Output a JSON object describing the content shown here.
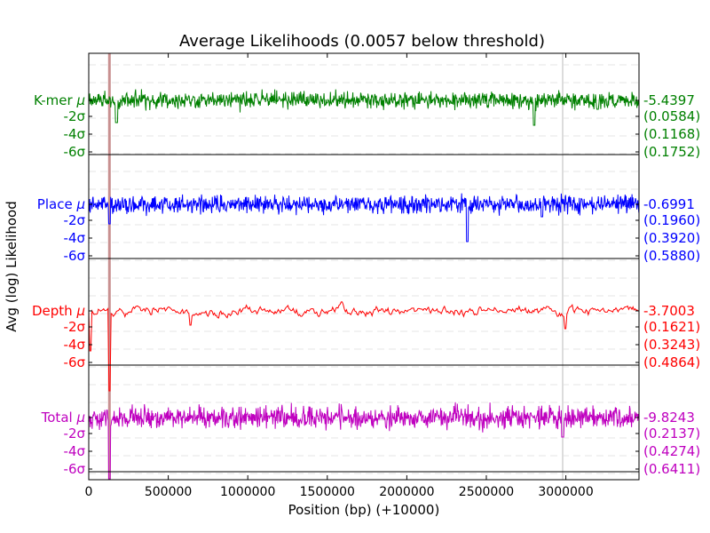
{
  "chart_data": {
    "type": "line",
    "title": "Average Likelihoods (0.0057 below threshold)",
    "xlabel": "Position (bp) (+10000)",
    "ylabel": "Avg (log) Likelihood",
    "xlim": [
      0,
      3460000
    ],
    "x_ticks": [
      {
        "value": 0,
        "label": "0"
      },
      {
        "value": 500000,
        "label": "500000"
      },
      {
        "value": 1000000,
        "label": "1000000"
      },
      {
        "value": 1500000,
        "label": "1500000"
      },
      {
        "value": 2000000,
        "label": "2000000"
      },
      {
        "value": 2500000,
        "label": "2500000"
      },
      {
        "value": 3000000,
        "label": "3000000"
      }
    ],
    "grid": "dashed horizontal",
    "highlight_positions": [
      130000,
      2980000
    ],
    "highlight_colors": [
      "#c89090",
      "#dcdcdc"
    ],
    "band_marks": [
      {
        "key": "mu",
        "label": "μ"
      },
      {
        "key": "m2",
        "label": "-2σ"
      },
      {
        "key": "m4",
        "label": "-4σ"
      },
      {
        "key": "m6",
        "label": "-6σ"
      }
    ],
    "series": [
      {
        "name": "K-mer",
        "color": "#008000",
        "mean": "-5.4397",
        "sd": [
          "(0.0584)",
          "(0.1168)",
          "(0.1752)"
        ],
        "amp": 14,
        "noise": "fine",
        "spikes": [
          [
            175000,
            25
          ],
          [
            2800000,
            28
          ],
          [
            3200000,
            10
          ]
        ]
      },
      {
        "name": "Place",
        "color": "#0000ff",
        "mean": "-0.6991",
        "sd": [
          "(0.1960)",
          "(0.3920)",
          "(0.5880)"
        ],
        "amp": 15,
        "noise": "fine",
        "spikes": [
          [
            130000,
            22
          ],
          [
            2380000,
            42
          ],
          [
            2850000,
            14
          ]
        ]
      },
      {
        "name": "Depth",
        "color": "#ff0000",
        "mean": "-3.7003",
        "sd": [
          "(0.1621)",
          "(0.3243)",
          "(0.4864)"
        ],
        "amp": 10,
        "noise": "smooth",
        "spikes": [
          [
            10000,
            45
          ],
          [
            130000,
            90
          ],
          [
            640000,
            16
          ],
          [
            3000000,
            20
          ]
        ]
      },
      {
        "name": "Total",
        "color": "#bf00bf",
        "mean": "-9.8243",
        "sd": [
          "(0.2137)",
          "(0.4274)",
          "(0.6411)"
        ],
        "amp": 18,
        "noise": "fine",
        "spikes": [
          [
            130000,
            85
          ],
          [
            2980000,
            22
          ]
        ]
      }
    ]
  }
}
